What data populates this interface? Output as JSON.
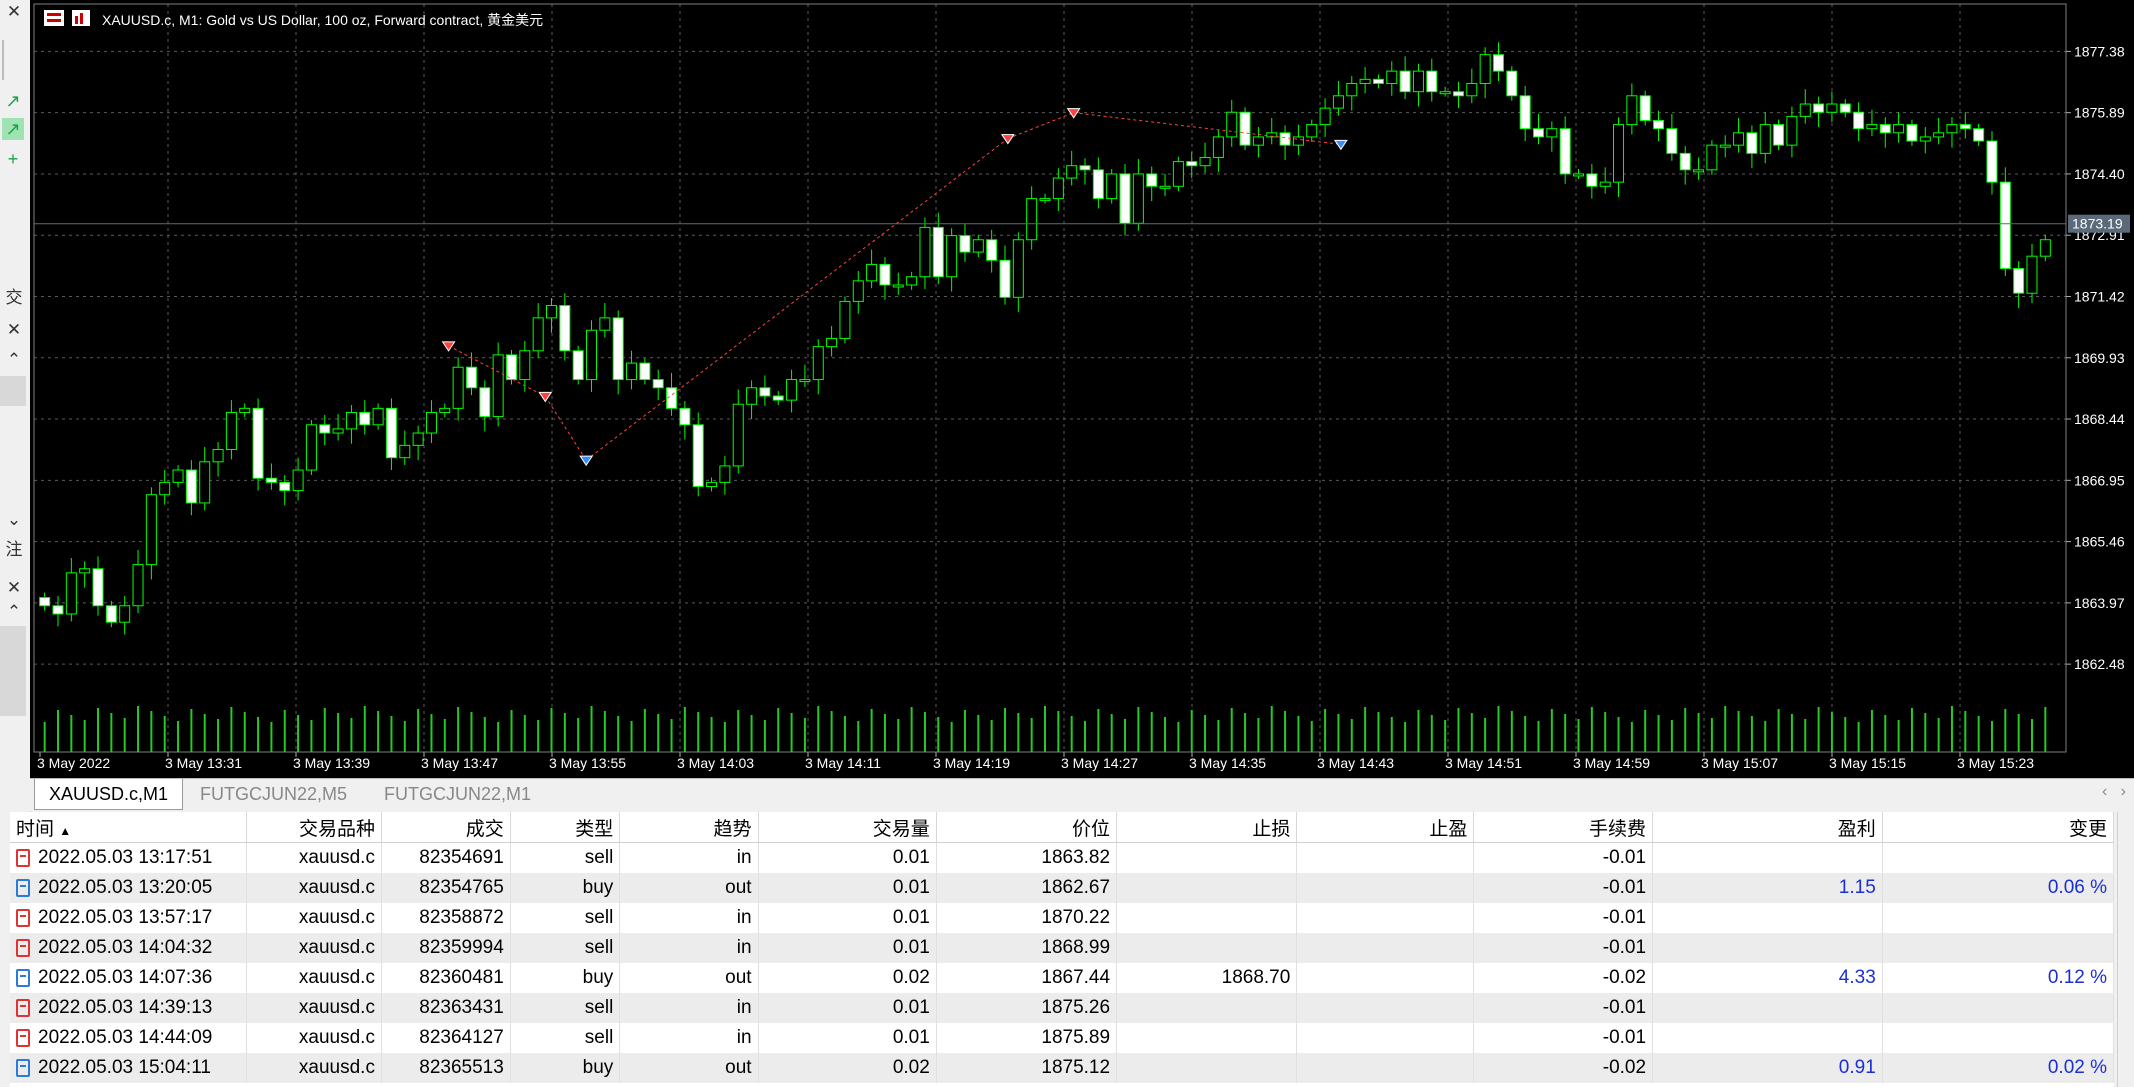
{
  "window": {
    "chart_title": "XAUUSD.c, M1:  Gold vs US Dollar, 100 oz, Forward contract, 黄金美元",
    "current_price": "1873.19"
  },
  "left_strip": {
    "labels": [
      "交",
      "注"
    ]
  },
  "chart_data": {
    "type": "candlestick",
    "symbol": "XAUUSD.c",
    "timeframe": "M1",
    "y_ticks": [
      "1877.38",
      "1875.89",
      "1874.40",
      "1872.91",
      "1871.42",
      "1869.93",
      "1868.44",
      "1866.95",
      "1865.46",
      "1863.97",
      "1862.48"
    ],
    "x_ticks": [
      "3 May 2022",
      "3 May 13:31",
      "3 May 13:39",
      "3 May 13:47",
      "3 May 13:55",
      "3 May 14:03",
      "3 May 14:11",
      "3 May 14:19",
      "3 May 14:27",
      "3 May 14:35",
      "3 May 14:43",
      "3 May 14:51",
      "3 May 14:59",
      "3 May 15:07",
      "3 May 15:15",
      "3 May 15:23"
    ],
    "ylim": [
      1861.9,
      1877.9
    ],
    "grid": true,
    "up_color": "#000000",
    "down_color": "#ffffff",
    "outline_color": "#00ff00",
    "background": "#000000",
    "close": [
      1863.9,
      1863.7,
      1864.7,
      1864.8,
      1863.9,
      1863.5,
      1863.9,
      1864.9,
      1866.6,
      1866.9,
      1867.2,
      1866.4,
      1867.4,
      1867.7,
      1868.6,
      1868.7,
      1867.0,
      1866.9,
      1866.7,
      1867.2,
      1868.3,
      1868.1,
      1868.2,
      1868.6,
      1868.3,
      1868.7,
      1867.5,
      1867.8,
      1868.1,
      1868.6,
      1868.7,
      1869.7,
      1869.2,
      1868.5,
      1870.0,
      1869.4,
      1870.1,
      1870.9,
      1871.2,
      1870.1,
      1869.4,
      1870.6,
      1870.9,
      1869.4,
      1869.8,
      1869.4,
      1869.2,
      1868.7,
      1868.3,
      1866.8,
      1866.9,
      1867.3,
      1868.8,
      1869.2,
      1869.0,
      1868.9,
      1869.4,
      1869.4,
      1870.2,
      1870.4,
      1871.3,
      1871.8,
      1872.2,
      1871.7,
      1871.7,
      1871.9,
      1873.1,
      1871.9,
      1872.9,
      1872.5,
      1872.8,
      1872.3,
      1871.4,
      1872.8,
      1873.8,
      1873.8,
      1874.3,
      1874.6,
      1874.5,
      1873.8,
      1874.4,
      1873.2,
      1874.4,
      1874.1,
      1874.1,
      1874.7,
      1874.6,
      1874.8,
      1875.3,
      1875.9,
      1875.1,
      1875.3,
      1875.4,
      1875.1,
      1875.3,
      1875.6,
      1876.0,
      1876.3,
      1876.6,
      1876.7,
      1876.6,
      1876.9,
      1876.4,
      1876.9,
      1876.4,
      1876.4,
      1876.3,
      1876.6,
      1877.3,
      1876.9,
      1876.3,
      1875.5,
      1875.3,
      1875.5,
      1874.4,
      1874.4,
      1874.1,
      1874.2,
      1875.6,
      1876.3,
      1875.7,
      1875.5,
      1874.9,
      1874.5,
      1874.5,
      1875.1,
      1875.1,
      1875.4,
      1874.9,
      1875.6,
      1875.1,
      1875.8,
      1876.1,
      1875.9,
      1876.1,
      1875.9,
      1875.5,
      1875.6,
      1875.4,
      1875.6,
      1875.2,
      1875.3,
      1875.4,
      1875.6,
      1875.5,
      1875.2,
      1874.2,
      1872.1,
      1871.5,
      1872.4,
      1872.8
    ]
  },
  "tabs": [
    {
      "label": "XAUUSD.c,M1",
      "active": true
    },
    {
      "label": "FUTGCJUN22,M5",
      "active": false
    },
    {
      "label": "FUTGCJUN22,M1",
      "active": false
    }
  ],
  "table": {
    "headers": [
      "时间",
      "交易品种",
      "成交",
      "类型",
      "趋势",
      "交易量",
      "价位",
      "止损",
      "止盈",
      "手续费",
      "盈利",
      "变更"
    ],
    "sort_column": "时间",
    "rows": [
      [
        "2022.05.03 13:17:51",
        "xauusd.c",
        "82354691",
        "sell",
        "in",
        "0.01",
        "1863.82",
        "",
        "",
        "-0.01",
        "",
        ""
      ],
      [
        "2022.05.03 13:20:05",
        "xauusd.c",
        "82354765",
        "buy",
        "out",
        "0.01",
        "1862.67",
        "",
        "",
        "-0.01",
        "1.15",
        "0.06 %"
      ],
      [
        "2022.05.03 13:57:17",
        "xauusd.c",
        "82358872",
        "sell",
        "in",
        "0.01",
        "1870.22",
        "",
        "",
        "-0.01",
        "",
        ""
      ],
      [
        "2022.05.03 14:04:32",
        "xauusd.c",
        "82359994",
        "sell",
        "in",
        "0.01",
        "1868.99",
        "",
        "",
        "-0.01",
        "",
        ""
      ],
      [
        "2022.05.03 14:07:36",
        "xauusd.c",
        "82360481",
        "buy",
        "out",
        "0.02",
        "1867.44",
        "1868.70",
        "",
        "-0.02",
        "4.33",
        "0.12 %"
      ],
      [
        "2022.05.03 14:39:13",
        "xauusd.c",
        "82363431",
        "sell",
        "in",
        "0.01",
        "1875.26",
        "",
        "",
        "-0.01",
        "",
        ""
      ],
      [
        "2022.05.03 14:44:09",
        "xauusd.c",
        "82364127",
        "sell",
        "in",
        "0.01",
        "1875.89",
        "",
        "",
        "-0.01",
        "",
        ""
      ],
      [
        "2022.05.03 15:04:11",
        "xauusd.c",
        "82365513",
        "buy",
        "out",
        "0.02",
        "1875.12",
        "",
        "",
        "-0.02",
        "0.91",
        "0.02 %"
      ]
    ]
  }
}
